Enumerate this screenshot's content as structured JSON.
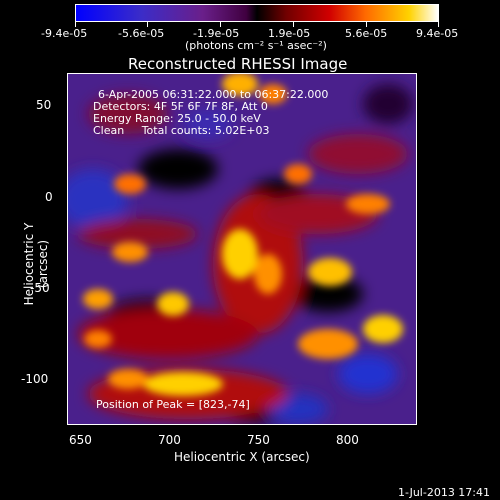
{
  "colorbar": {
    "tick_labels": [
      "-9.4e-05",
      "-5.6e-05",
      "-1.9e-05",
      "1.9e-05",
      "5.6e-05",
      "9.4e-05"
    ],
    "units_label": "(photons cm⁻² s⁻¹ asec⁻²)"
  },
  "plot": {
    "title": "Reconstructed RHESSI Image",
    "info_lines": [
      "6-Apr-2005 06:31:22.000 to 06:37:22.000",
      "Detectors: 4F 5F 6F 7F 8F, Att 0",
      "Energy Range: 25.0 - 50.0 keV",
      "Clean     Total counts: 5.02E+03"
    ],
    "peak_label": "Position of Peak = [823,-74]",
    "x_axis_label": "Heliocentric X (arcsec)",
    "y_axis_label": "Heliocentric Y (arcsec)",
    "x_ticks": [
      "650",
      "700",
      "750",
      "800"
    ],
    "y_ticks": [
      "50",
      "0",
      "-50",
      "-100"
    ]
  },
  "footer": {
    "timestamp": "1-Jul-2013 17:41"
  }
}
